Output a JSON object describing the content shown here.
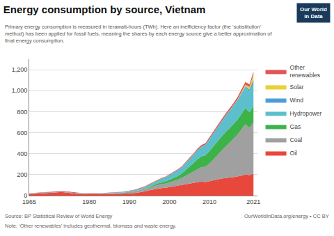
{
  "chart_data": {
    "type": "area",
    "stacked": true,
    "title": "Energy consumption by source, Vietnam",
    "subtitle": "Primary energy consumption is measured in terawatt-hours (TWh). Here an inefficiency factor (the ‘substitution’\nmethod) has been applied for fossil fuels, meaning the shares by each energy source give a better approximation of\nfinal energy consumption.",
    "annotations": [
      "Source: BP Statistical Review of World Energy",
      "Note: ‘Other renewables’ includes geothermal, biomass and waste energy.",
      "OurWorldInData.org/energy • CC BY",
      "Our World\nin Data"
    ],
    "x": [
      1965,
      1966,
      1967,
      1968,
      1969,
      1970,
      1971,
      1972,
      1973,
      1974,
      1975,
      1976,
      1977,
      1978,
      1979,
      1980,
      1981,
      1982,
      1983,
      1984,
      1985,
      1986,
      1987,
      1988,
      1989,
      1990,
      1991,
      1992,
      1993,
      1994,
      1995,
      1996,
      1997,
      1998,
      1999,
      2000,
      2001,
      2002,
      2003,
      2004,
      2005,
      2006,
      2007,
      2008,
      2009,
      2010,
      2011,
      2012,
      2013,
      2014,
      2015,
      2016,
      2017,
      2018,
      2019,
      2020,
      2021
    ],
    "series": [
      {
        "name": "Oil",
        "color": "#e8483b",
        "values": [
          14,
          18,
          20,
          22,
          24,
          28,
          30,
          32,
          34,
          30,
          22,
          18,
          16,
          15,
          14,
          13,
          12,
          12,
          12,
          13,
          13,
          14,
          15,
          16,
          18,
          20,
          23,
          28,
          34,
          42,
          52,
          60,
          68,
          72,
          75,
          82,
          88,
          92,
          98,
          108,
          115,
          122,
          130,
          135,
          130,
          140,
          148,
          155,
          162,
          168,
          172,
          175,
          180,
          190,
          200,
          195,
          210
        ]
      },
      {
        "name": "Coal",
        "color": "#a0a0a0",
        "values": [
          5,
          6,
          6,
          7,
          7,
          8,
          8,
          9,
          10,
          10,
          10,
          9,
          8,
          8,
          7,
          7,
          7,
          8,
          8,
          9,
          10,
          10,
          11,
          12,
          14,
          16,
          18,
          20,
          22,
          25,
          28,
          32,
          36,
          38,
          40,
          44,
          50,
          58,
          68,
          80,
          92,
          105,
          120,
          135,
          145,
          165,
          195,
          230,
          265,
          300,
          330,
          365,
          400,
          440,
          480,
          450,
          490
        ]
      },
      {
        "name": "Gas",
        "color": "#3db249",
        "values": [
          0,
          0,
          0,
          0,
          0,
          0,
          0,
          0,
          0,
          0,
          0,
          0,
          0,
          0,
          0,
          0,
          0,
          0,
          0,
          0,
          0,
          0,
          0,
          0,
          0,
          0,
          0,
          0,
          2,
          4,
          6,
          8,
          12,
          16,
          20,
          25,
          30,
          35,
          42,
          55,
          68,
          80,
          95,
          105,
          110,
          120,
          125,
          130,
          135,
          138,
          140,
          142,
          145,
          150,
          155,
          150,
          155
        ]
      },
      {
        "name": "Hydropower",
        "color": "#5dbfcc",
        "values": [
          0,
          0,
          0,
          0,
          0,
          0,
          0,
          0,
          0,
          0,
          0,
          0,
          0,
          0,
          0,
          0,
          0,
          0,
          1,
          2,
          3,
          4,
          5,
          6,
          7,
          8,
          10,
          12,
          14,
          16,
          20,
          25,
          30,
          35,
          40,
          45,
          50,
          55,
          60,
          68,
          75,
          82,
          90,
          95,
          100,
          115,
          125,
          135,
          145,
          155,
          165,
          175,
          185,
          195,
          200,
          195,
          205
        ]
      },
      {
        "name": "Wind",
        "color": "#4c9ed9",
        "values": [
          0,
          0,
          0,
          0,
          0,
          0,
          0,
          0,
          0,
          0,
          0,
          0,
          0,
          0,
          0,
          0,
          0,
          0,
          0,
          0,
          0,
          0,
          0,
          0,
          0,
          0,
          0,
          0,
          0,
          0,
          0,
          0,
          0,
          0,
          0,
          0,
          0,
          0,
          0,
          0,
          0,
          0,
          0,
          0,
          0,
          0,
          0,
          0,
          0,
          0,
          0,
          1,
          2,
          4,
          8,
          20,
          45
        ]
      },
      {
        "name": "Solar",
        "color": "#e8d234",
        "values": [
          0,
          0,
          0,
          0,
          0,
          0,
          0,
          0,
          0,
          0,
          0,
          0,
          0,
          0,
          0,
          0,
          0,
          0,
          0,
          0,
          0,
          0,
          0,
          0,
          0,
          0,
          0,
          0,
          0,
          0,
          0,
          0,
          0,
          0,
          0,
          0,
          0,
          0,
          0,
          0,
          0,
          0,
          0,
          0,
          0,
          0,
          0,
          0,
          0,
          0,
          1,
          2,
          4,
          8,
          15,
          25,
          50
        ]
      },
      {
        "name": "Other\nrenewables",
        "color": "#e05555",
        "values": [
          2,
          2,
          2,
          2,
          2,
          2,
          2,
          2,
          2,
          2,
          2,
          2,
          2,
          2,
          2,
          2,
          2,
          2,
          2,
          2,
          2,
          2,
          2,
          3,
          3,
          3,
          3,
          4,
          4,
          4,
          5,
          5,
          6,
          6,
          6,
          7,
          7,
          8,
          8,
          9,
          10,
          11,
          12,
          13,
          14,
          15,
          16,
          17,
          18,
          19,
          20,
          21,
          22,
          23,
          24,
          24,
          25
        ]
      }
    ],
    "xlim": [
      1965,
      2022
    ],
    "xticks": [
      1965,
      1980,
      1990,
      2000,
      2010,
      2021
    ],
    "ylim": [
      0,
      1300
    ],
    "yticks": [
      0,
      200,
      400,
      600,
      800,
      {
        "value": 1000,
        "label": "1,000"
      },
      {
        "value": 1200,
        "label": "1,200"
      }
    ],
    "grid": "y",
    "legend": "right"
  }
}
